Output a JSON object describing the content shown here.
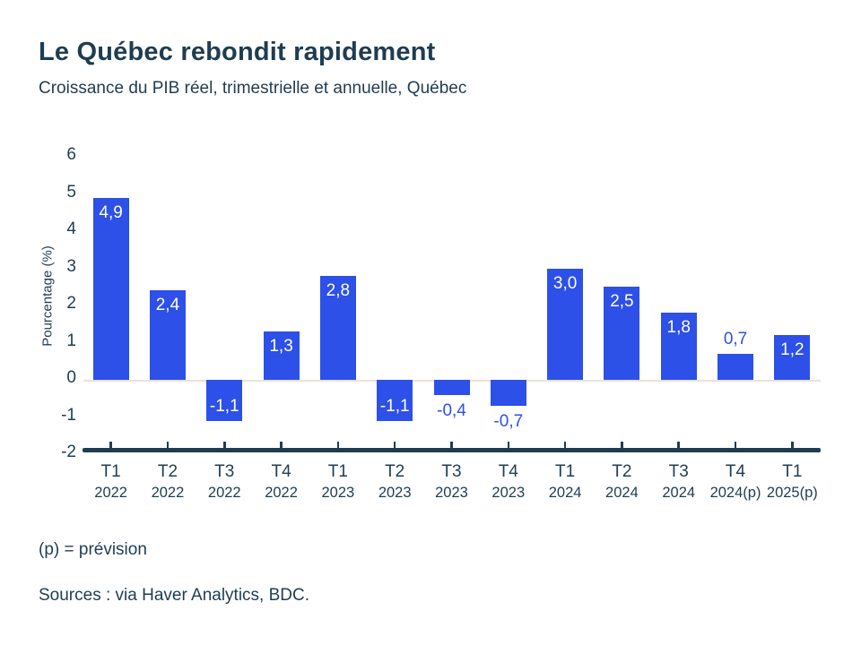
{
  "page": {
    "title": "Le Québec rebondit rapidement",
    "subtitle": "Croissance du PIB réel, trimestrielle et annuelle, Québec",
    "footnote": "(p) = prévision",
    "sources": "Sources : via Haver Analytics, BDC."
  },
  "colors": {
    "bar": "#2D50E8",
    "text": "#1E3D52",
    "zero_line": "#EAE2D8",
    "label_inside_bar": "#FFFFFF",
    "label_outside_bar": "#2D50E8"
  },
  "chart_data": {
    "type": "bar",
    "title": "Le Québec rebondit rapidement",
    "subtitle": "Croissance du PIB réel, trimestrielle et annuelle, Québec",
    "xlabel": "",
    "ylabel": "Pourcentage (%)",
    "ylim": [
      -2,
      6
    ],
    "yticks": [
      6,
      5,
      4,
      3,
      2,
      1,
      0,
      -1,
      -2
    ],
    "grid": false,
    "legend": "none",
    "categories": [
      "T1 2022",
      "T2 2022",
      "T3 2022",
      "T4 2022",
      "T1 2023",
      "T2 2023",
      "T3 2023",
      "T4 2023",
      "T1 2024",
      "T2 2024",
      "T3 2024",
      "T4 2024(p)",
      "T1 2025(p)"
    ],
    "values": [
      4.9,
      2.4,
      -1.1,
      1.3,
      2.8,
      -1.1,
      -0.4,
      -0.7,
      3.0,
      2.5,
      1.8,
      0.7,
      1.2
    ],
    "value_labels": [
      "4,9",
      "2,4",
      "-1,1",
      "1,3",
      "2,8",
      "-1,1",
      "-0,4",
      "-0,7",
      "3,0",
      "2,5",
      "1,8",
      "0,7",
      "1,2"
    ],
    "points": [
      {
        "quarter": "T1",
        "year": "2022",
        "value": 4.9,
        "label": "4,9"
      },
      {
        "quarter": "T2",
        "year": "2022",
        "value": 2.4,
        "label": "2,4"
      },
      {
        "quarter": "T3",
        "year": "2022",
        "value": -1.1,
        "label": "-1,1"
      },
      {
        "quarter": "T4",
        "year": "2022",
        "value": 1.3,
        "label": "1,3"
      },
      {
        "quarter": "T1",
        "year": "2023",
        "value": 2.8,
        "label": "2,8"
      },
      {
        "quarter": "T2",
        "year": "2023",
        "value": -1.1,
        "label": "-1,1"
      },
      {
        "quarter": "T3",
        "year": "2023",
        "value": -0.4,
        "label": "-0,4"
      },
      {
        "quarter": "T4",
        "year": "2023",
        "value": -0.7,
        "label": "-0,7"
      },
      {
        "quarter": "T1",
        "year": "2024",
        "value": 3.0,
        "label": "3,0"
      },
      {
        "quarter": "T2",
        "year": "2024",
        "value": 2.5,
        "label": "2,5"
      },
      {
        "quarter": "T3",
        "year": "2024",
        "value": 1.8,
        "label": "1,8"
      },
      {
        "quarter": "T4",
        "year": "2024(p)",
        "value": 0.7,
        "label": "0,7"
      },
      {
        "quarter": "T1",
        "year": "2025(p)",
        "value": 1.2,
        "label": "1,2"
      }
    ]
  }
}
